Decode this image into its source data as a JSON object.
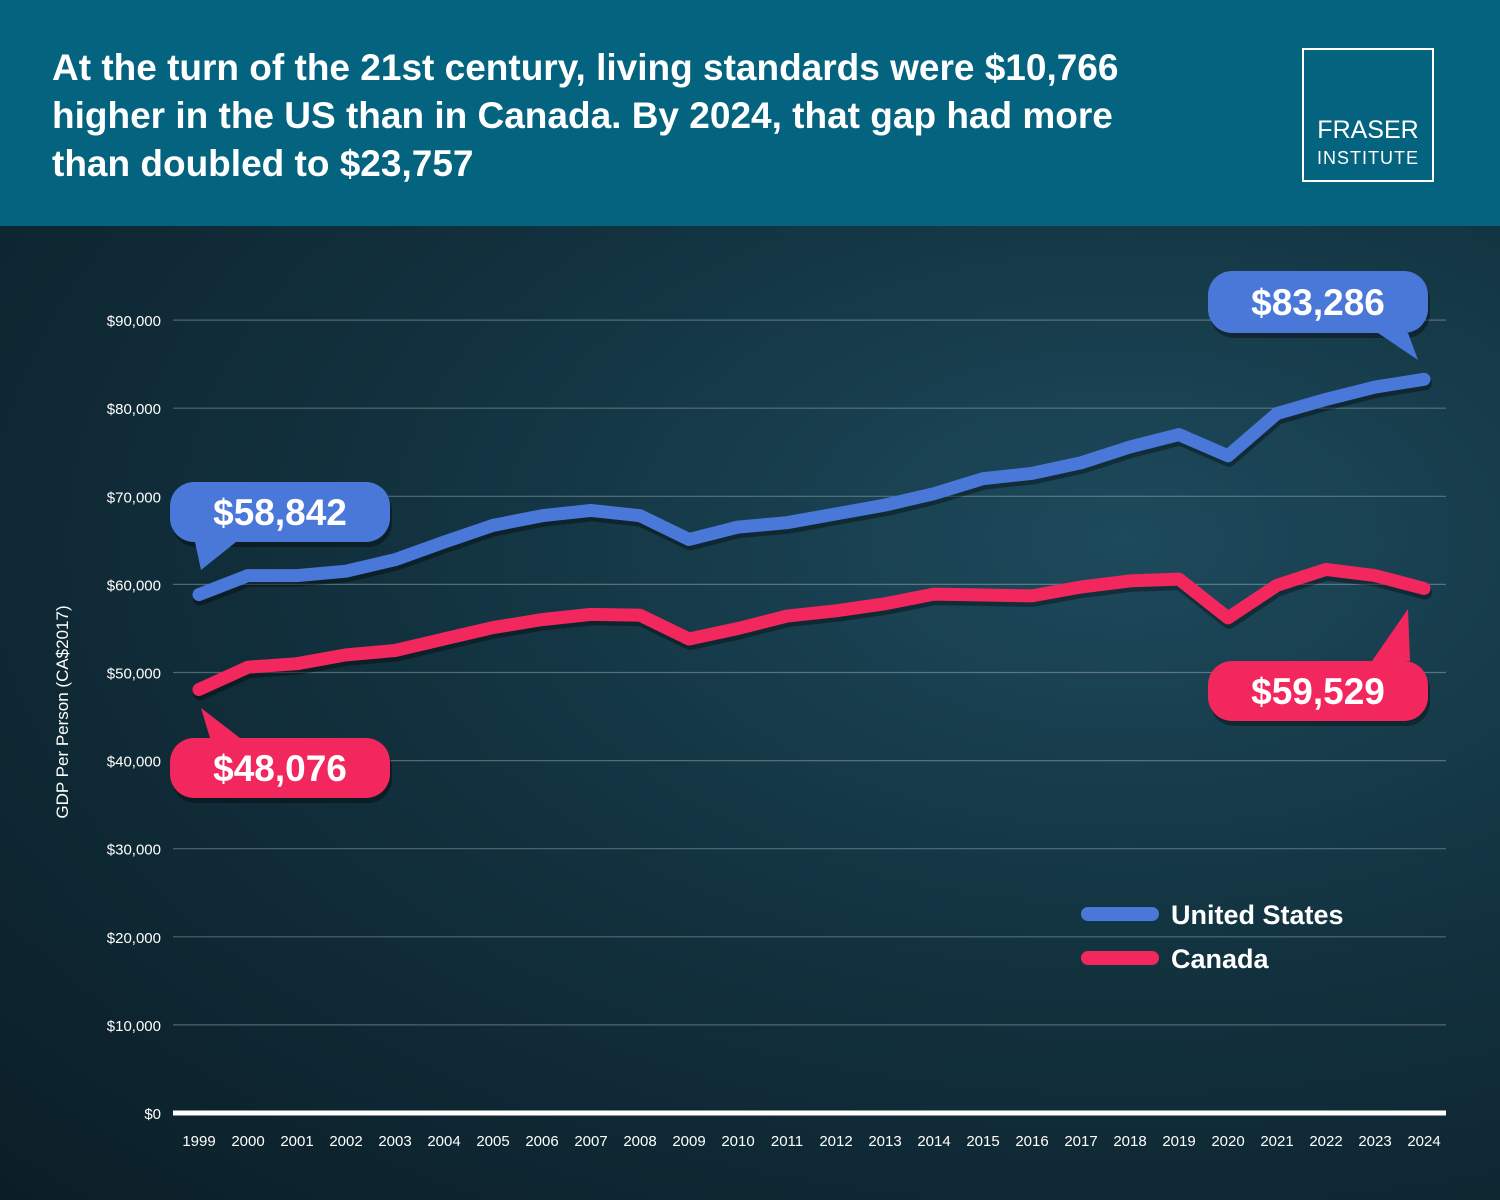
{
  "header": {
    "title": "At the turn of the 21st century, living standards were $10,766 higher in the US than in Canada. By 2024, that gap had more than doubled to $23,757",
    "logo_line1": "FRASER",
    "logo_line2": "INSTITUTE"
  },
  "colors": {
    "header_bg": "#04637f",
    "united_states": "#4a78d8",
    "canada": "#f2275e"
  },
  "chart_data": {
    "type": "line",
    "ylabel": "GDP Per Person (CA$2017)",
    "ylim": [
      0,
      95000
    ],
    "yticks": [
      0,
      10000,
      20000,
      30000,
      40000,
      50000,
      60000,
      70000,
      80000,
      90000
    ],
    "ytick_labels": [
      "$0",
      "$10,000",
      "$20,000",
      "$30,000",
      "$40,000",
      "$50,000",
      "$60,000",
      "$70,000",
      "$80,000",
      "$90,000"
    ],
    "grid": true,
    "legend": "bottom-right",
    "x": [
      "1999",
      "2000",
      "2001",
      "2002",
      "2003",
      "2004",
      "2005",
      "2006",
      "2007",
      "2008",
      "2009",
      "2010",
      "2011",
      "2012",
      "2013",
      "2014",
      "2015",
      "2016",
      "2017",
      "2018",
      "2019",
      "2020",
      "2021",
      "2022",
      "2023",
      "2024"
    ],
    "series": [
      {
        "name": "United States",
        "color": "#4a78d8",
        "values": [
          58842,
          61000,
          61000,
          61500,
          62800,
          64800,
          66700,
          67800,
          68400,
          67800,
          65100,
          66500,
          67000,
          68000,
          69000,
          70300,
          72000,
          72600,
          73800,
          75600,
          77000,
          74600,
          79400,
          81000,
          82400,
          83286
        ]
      },
      {
        "name": "Canada",
        "color": "#f2275e",
        "values": [
          48076,
          50600,
          51000,
          52000,
          52500,
          53800,
          55100,
          56000,
          56600,
          56500,
          53800,
          55000,
          56400,
          57000,
          57800,
          58900,
          58800,
          58700,
          59700,
          60400,
          60600,
          56200,
          59900,
          61700,
          61000,
          59529
        ]
      }
    ],
    "annotations": [
      {
        "series": "United States",
        "x": "1999",
        "label": "$58,842"
      },
      {
        "series": "Canada",
        "x": "1999",
        "label": "$48,076"
      },
      {
        "series": "United States",
        "x": "2024",
        "label": "$83,286"
      },
      {
        "series": "Canada",
        "x": "2024",
        "label": "$59,529"
      }
    ]
  }
}
